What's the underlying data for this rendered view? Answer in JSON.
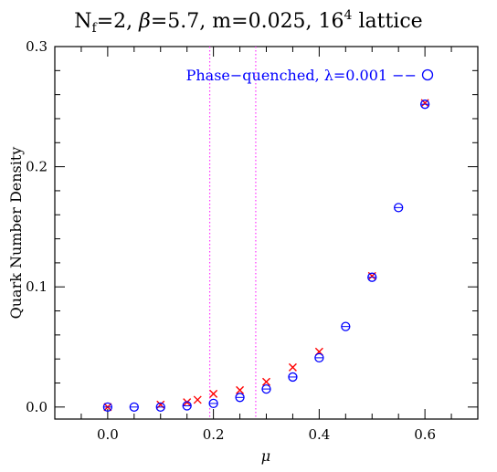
{
  "chart_data": {
    "type": "scatter",
    "title": "N_f=2, β=5.7, m=0.025, 16^4 lattice",
    "title_parts": {
      "n": "N",
      "n_sub": "f",
      "eq1": "=2, ",
      "beta": "β",
      "eq2": "=5.7, m=0.025, 16",
      "sup": "4",
      "tail": " lattice"
    },
    "xlabel": "μ",
    "ylabel": "Quark Number Density",
    "xlim": [
      -0.1,
      0.7
    ],
    "ylim": [
      -0.01,
      0.3
    ],
    "x_ticks": [
      0.0,
      0.2,
      0.4,
      0.6
    ],
    "x_tick_labels": [
      "0.0",
      "0.2",
      "0.4",
      "0.6"
    ],
    "y_ticks": [
      0.0,
      0.1,
      0.2,
      0.3
    ],
    "y_tick_labels": [
      "0.0",
      "0.1",
      "0.2",
      "0.3"
    ],
    "vlines": [
      0.193,
      0.28
    ],
    "grid": false,
    "legend_placement": "top-right",
    "legend_text": "Phase−quenched, λ=0.001 −−",
    "series": [
      {
        "marker": "cross",
        "color": "#ff0000",
        "x": [
          0.0,
          0.1,
          0.15,
          0.17,
          0.2,
          0.25,
          0.3,
          0.35,
          0.4,
          0.5,
          0.6
        ],
        "y": [
          0.0,
          0.002,
          0.004,
          0.006,
          0.011,
          0.014,
          0.021,
          0.033,
          0.046,
          0.109,
          0.253
        ]
      },
      {
        "marker": "circle",
        "color": "#0000ff",
        "x": [
          0.0,
          0.05,
          0.1,
          0.15,
          0.2,
          0.25,
          0.3,
          0.35,
          0.4,
          0.45,
          0.5,
          0.55,
          0.6
        ],
        "y": [
          0.0,
          0.0,
          0.0,
          0.001,
          0.003,
          0.008,
          0.015,
          0.025,
          0.041,
          0.067,
          0.108,
          0.166,
          0.252
        ]
      }
    ]
  }
}
